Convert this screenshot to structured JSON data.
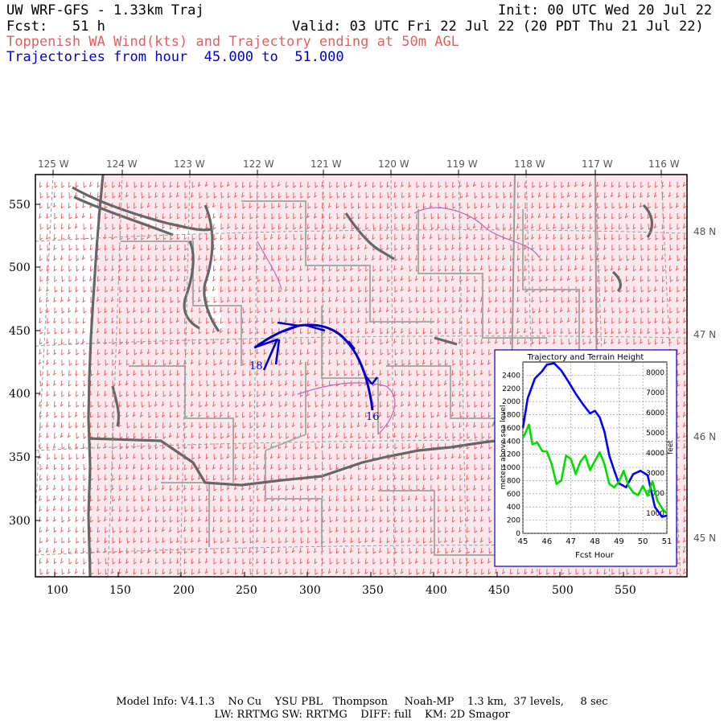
{
  "header": {
    "model": "UW WRF-GFS - 1.33km Traj",
    "fcst": "Fcst:   51 h",
    "init": "Init: 00 UTC Wed 20 Jul 22",
    "valid": "Valid: 03 UTC Fri 22 Jul 22 (20 PDT Thu 21 Jul 22)",
    "product": "Toppenish WA Wind(kts) and Trajectory ending at 50m AGL",
    "trajectories": "Trajectories from hour  45.000 to  51.000"
  },
  "map": {
    "lon_labels": [
      "125 W",
      "124 W",
      "123 W",
      "122 W",
      "121 W",
      "120 W",
      "119 W",
      "118 W",
      "117 W",
      "116 W"
    ],
    "lat_labels": [
      "48 N",
      "47 N",
      "46 N",
      "45 N"
    ],
    "x_ticks": [
      "100",
      "150",
      "200",
      "250",
      "300",
      "350",
      "400",
      "450",
      "500",
      "550"
    ],
    "y_ticks": [
      "550",
      "500",
      "450",
      "400",
      "350",
      "300"
    ],
    "trajectory_labels": [
      "18",
      "16"
    ],
    "colors": {
      "wind_barbs": "#e04848",
      "trajectory": "#0000cc",
      "coast": "#666666",
      "county": "#aaaaaa",
      "land": "#fbe8ec"
    }
  },
  "inset": {
    "title": "Trajectory and Terrain Height",
    "ylabel_left": "meters above sea level",
    "ylabel_right": "feet",
    "xlabel": "Fcst Hour",
    "x_ticks": [
      "45",
      "46",
      "47",
      "48",
      "49",
      "50",
      "51"
    ],
    "y_left_ticks": [
      "0",
      "200",
      "400",
      "600",
      "800",
      "1000",
      "1200",
      "1400",
      "1600",
      "1800",
      "2000",
      "2200",
      "2400"
    ],
    "y_right_ticks": [
      "1000",
      "2000",
      "3000",
      "4000",
      "5000",
      "6000",
      "7000",
      "8000"
    ]
  },
  "chart_data": {
    "type": "line",
    "title": "Trajectory and Terrain Height",
    "xlabel": "Fcst Hour",
    "ylabel": "meters above sea level",
    "xlim": [
      45,
      51
    ],
    "ylim": [
      0,
      2600
    ],
    "series": [
      {
        "color": "#0000ff",
        "x": [
          45.0,
          45.2,
          45.5,
          45.8,
          46.0,
          46.3,
          46.6,
          46.9,
          47.2,
          47.5,
          47.8,
          48.0,
          48.2,
          48.4,
          48.6,
          48.8,
          49.0,
          49.3,
          49.6,
          49.9,
          50.2,
          50.5,
          50.8,
          51.0
        ],
        "y": [
          1600,
          2050,
          2350,
          2460,
          2560,
          2580,
          2470,
          2300,
          2120,
          1960,
          1820,
          1860,
          1760,
          1540,
          1180,
          960,
          760,
          700,
          900,
          950,
          880,
          400,
          250,
          270
        ]
      },
      {
        "color": "#00dd00",
        "x": [
          45.0,
          45.1,
          45.25,
          45.4,
          45.6,
          45.8,
          46.0,
          46.2,
          46.4,
          46.6,
          46.8,
          47.0,
          47.2,
          47.4,
          47.6,
          47.8,
          48.0,
          48.2,
          48.4,
          48.6,
          48.8,
          49.0,
          49.2,
          49.4,
          49.6,
          49.8,
          50.0,
          50.2,
          50.4,
          50.6,
          50.8,
          51.0
        ],
        "y": [
          1450,
          1520,
          1650,
          1350,
          1380,
          1250,
          1240,
          1050,
          750,
          800,
          1180,
          1130,
          900,
          1090,
          1180,
          960,
          1100,
          1230,
          1050,
          750,
          700,
          780,
          950,
          720,
          620,
          580,
          720,
          570,
          790,
          500,
          380,
          300
        ]
      }
    ]
  },
  "footer": {
    "line1": "Model Info: V4.1.3    No Cu    YSU PBL   Thompson     Noah-MP    1.3 km,  37 levels,     8 sec",
    "line2": "LW: RRTMG SW: RRTMG    DIFF: full    KM: 2D Smagor"
  }
}
